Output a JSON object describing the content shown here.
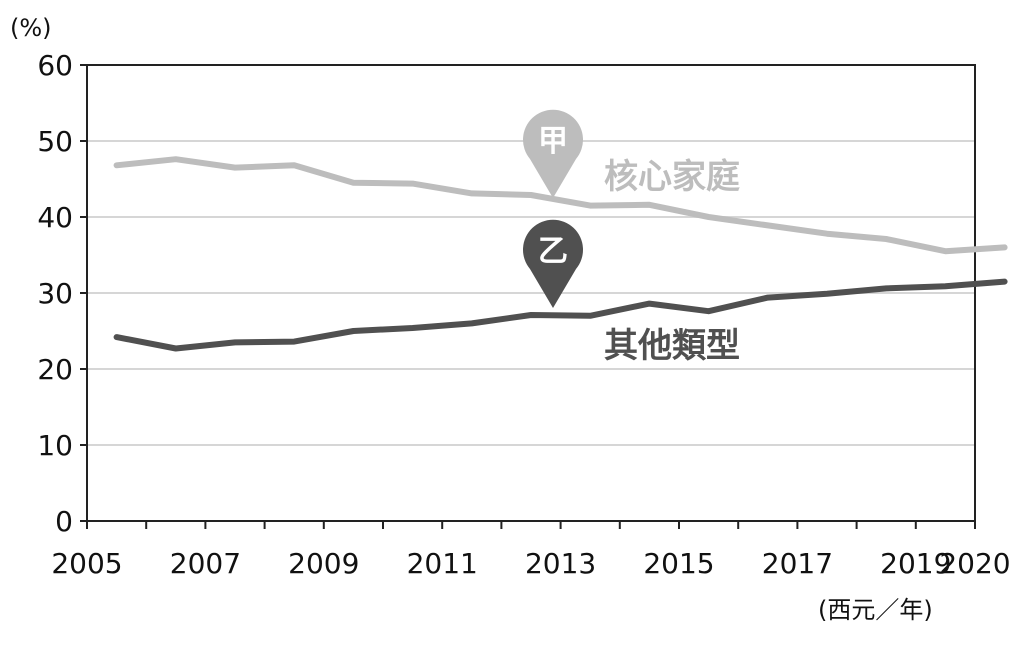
{
  "chart_data": {
    "type": "line",
    "y_unit_label": "(%)",
    "x_unit_label": "(西元／年)",
    "xlim": [
      2005,
      2020
    ],
    "ylim": [
      0,
      60
    ],
    "x_ticks": [
      2005,
      2007,
      2009,
      2011,
      2013,
      2015,
      2017,
      2019,
      2020
    ],
    "y_ticks": [
      0,
      10,
      20,
      30,
      40,
      50,
      60
    ],
    "grid": true,
    "x": [
      2005.5,
      2006.5,
      2007.5,
      2008.5,
      2009.5,
      2010.5,
      2011.5,
      2012.5,
      2013.5,
      2014.5,
      2015.5,
      2016.5,
      2017.5,
      2018.5,
      2019.5,
      2020.5
    ],
    "series": [
      {
        "name": "核心家庭",
        "marker_label": "甲",
        "color": "#bdbdbd",
        "values": [
          46.8,
          47.6,
          46.5,
          46.8,
          44.5,
          44.4,
          43.1,
          42.9,
          41.5,
          41.6,
          40.0,
          38.9,
          37.8,
          37.1,
          35.5,
          36.0
        ]
      },
      {
        "name": "其他類型",
        "marker_label": "乙",
        "color": "#505050",
        "values": [
          24.2,
          22.7,
          23.5,
          23.6,
          25.0,
          25.4,
          26.0,
          27.1,
          27.0,
          28.6,
          27.6,
          29.4,
          29.9,
          30.6,
          30.9,
          31.5
        ]
      }
    ]
  }
}
